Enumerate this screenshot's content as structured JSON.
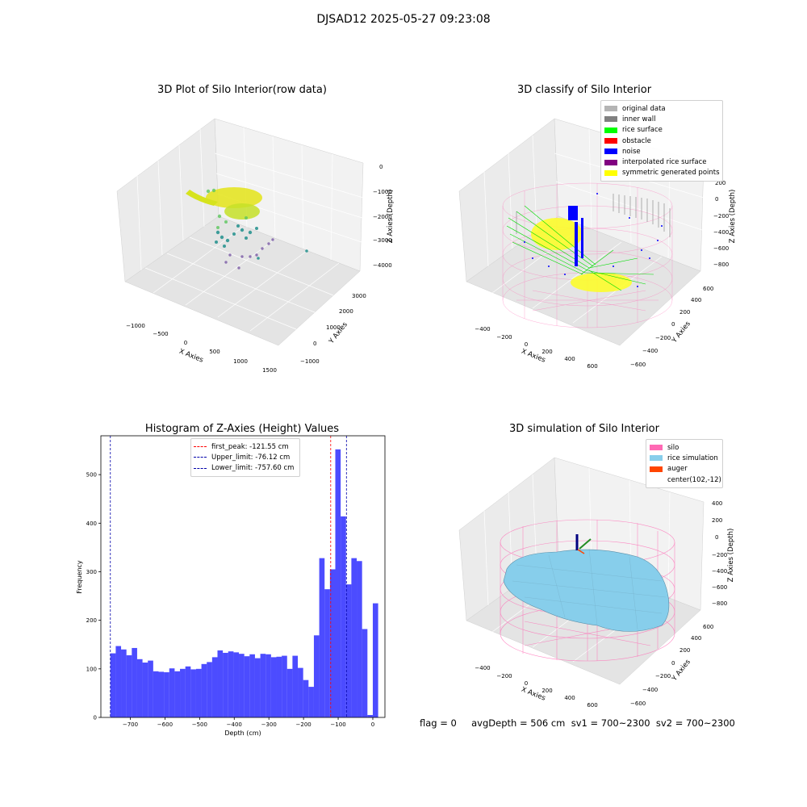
{
  "suptitle": "DJSAD12 2025-05-27 09:23:08",
  "status": "flag = 0     avgDepth = 506 cm  sv1 = 700~2300  sv2 = 700~2300",
  "chart_data": [
    {
      "type": "scatter",
      "title": "3D Plot of Silo Interior(row data)",
      "xlabel": "X Axies",
      "ylabel": "Y Axies",
      "zlabel": "Z Axies (Depth)",
      "xticks": [
        "−1000",
        "−500",
        "0",
        "500",
        "1000",
        "1500"
      ],
      "yticks": [
        "−1000",
        "0",
        "1000",
        "2000",
        "3000"
      ],
      "zticks": [
        "0",
        "−1000",
        "−2000",
        "−3000",
        "−4000"
      ],
      "colormap": "viridis",
      "grid": true
    },
    {
      "type": "scatter",
      "title": "3D classify of Silo Interior",
      "xlabel": "X Axies",
      "ylabel": "Y Axies",
      "zlabel": "Z Axies (Depth)",
      "xticks": [
        "−400",
        "−200",
        "0",
        "200",
        "400",
        "600"
      ],
      "yticks": [
        "−600",
        "−400",
        "−200",
        "0",
        "200",
        "400",
        "600"
      ],
      "zticks": [
        "200",
        "0",
        "−200",
        "−400",
        "−600",
        "−800"
      ],
      "legend": [
        {
          "label": "original data",
          "color": "#b4b4b4"
        },
        {
          "label": "inner wall",
          "color": "#808080"
        },
        {
          "label": "rice surface",
          "color": "#00ff00"
        },
        {
          "label": "obstacle",
          "color": "#ff0000"
        },
        {
          "label": "noise",
          "color": "#0000ff"
        },
        {
          "label": "interpolated rice surface",
          "color": "#800080"
        },
        {
          "label": "symmetric generated points",
          "color": "#ffff00"
        }
      ],
      "legend_position": "upper-right",
      "grid": true
    },
    {
      "type": "bar",
      "title": "Histogram of Z-Axies (Height) Values",
      "xlabel": "Depth (cm)",
      "ylabel": "Frequency",
      "xlim": [
        -785,
        35
      ],
      "ylim": [
        0,
        580
      ],
      "xticks": [
        -700,
        -600,
        -500,
        -400,
        -300,
        -200,
        -100,
        0
      ],
      "yticks": [
        0,
        100,
        200,
        300,
        400,
        500
      ],
      "bin_start": -757.6,
      "bin_width": 15.46,
      "values": [
        132,
        147,
        140,
        128,
        143,
        120,
        113,
        117,
        95,
        94,
        93,
        101,
        95,
        100,
        105,
        99,
        100,
        110,
        114,
        124,
        138,
        133,
        136,
        134,
        131,
        126,
        130,
        122,
        131,
        130,
        124,
        125,
        127,
        100,
        127,
        102,
        77,
        63,
        169,
        328,
        264,
        305,
        552,
        414,
        274,
        328,
        322,
        182,
        5,
        235
      ],
      "bar_color": "#0000ff",
      "lines": [
        {
          "label": "first_peak: -121.55 cm",
          "x": -121.55,
          "color": "#ff0000"
        },
        {
          "label": "Upper_limit: -76.12 cm",
          "x": -76.12,
          "color": "#0000aa"
        },
        {
          "label": "Lower_limit: -757.60 cm",
          "x": -757.6,
          "color": "#0000aa"
        }
      ],
      "legend_position": "upper-center"
    },
    {
      "type": "surface",
      "title": "3D simulation of Silo Interior",
      "xlabel": "X Axies",
      "ylabel": "Y Axies",
      "zlabel": "Z Axies (Depth)",
      "xticks": [
        "−400",
        "−200",
        "0",
        "200",
        "400",
        "600"
      ],
      "yticks": [
        "−600",
        "−400",
        "−200",
        "0",
        "200",
        "400",
        "600"
      ],
      "zticks": [
        "400",
        "200",
        "0",
        "−200",
        "−400",
        "−600",
        "−800"
      ],
      "legend": [
        {
          "label": "silo",
          "color": "#ff69b4"
        },
        {
          "label": "rice simulation",
          "color": "#87ceeb"
        },
        {
          "label": "auger",
          "color": "#ff4500"
        },
        {
          "label": "center(102,-12)",
          "color": ""
        }
      ],
      "legend_position": "upper-right",
      "grid": true
    }
  ]
}
